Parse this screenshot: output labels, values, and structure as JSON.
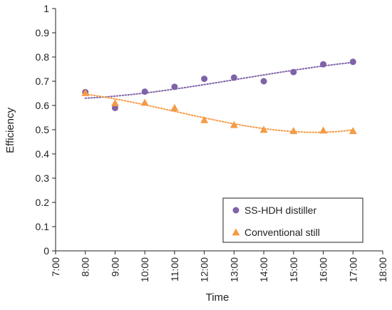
{
  "chart_data": {
    "type": "scatter",
    "title": "",
    "xlabel": "Time",
    "ylabel": "Efficiency",
    "x_ticks": [
      "7:00",
      "8:00",
      "9:00",
      "10:00",
      "11:00",
      "12:00",
      "13:00",
      "14:00",
      "15:00",
      "16:00",
      "17:00",
      "18:00"
    ],
    "y_ticks": [
      "0",
      "0.1",
      "0.2",
      "0.3",
      "0.4",
      "0.5",
      "0.6",
      "0.7",
      "0.8",
      "0.9",
      "1"
    ],
    "xlim": [
      "7:00",
      "18:00"
    ],
    "ylim": [
      0,
      1
    ],
    "grid": false,
    "legend_position": "bottom-right",
    "trendlines": "dotted polynomial fit per series",
    "series": [
      {
        "name": "SS-HDH distiller",
        "marker": "circle",
        "color": "#7F62A8",
        "x": [
          "8:00",
          "9:00",
          "10:00",
          "11:00",
          "12:00",
          "13:00",
          "14:00",
          "15:00",
          "16:00",
          "17:00"
        ],
        "values": [
          0.655,
          0.59,
          0.657,
          0.677,
          0.71,
          0.715,
          0.7,
          0.738,
          0.77,
          0.78
        ]
      },
      {
        "name": "Conventional still",
        "marker": "triangle",
        "color": "#F59A45",
        "x": [
          "8:00",
          "9:00",
          "10:00",
          "11:00",
          "12:00",
          "13:00",
          "14:00",
          "15:00",
          "16:00",
          "17:00"
        ],
        "values": [
          0.652,
          0.61,
          0.612,
          0.59,
          0.54,
          0.52,
          0.5,
          0.495,
          0.497,
          0.495
        ]
      }
    ]
  }
}
